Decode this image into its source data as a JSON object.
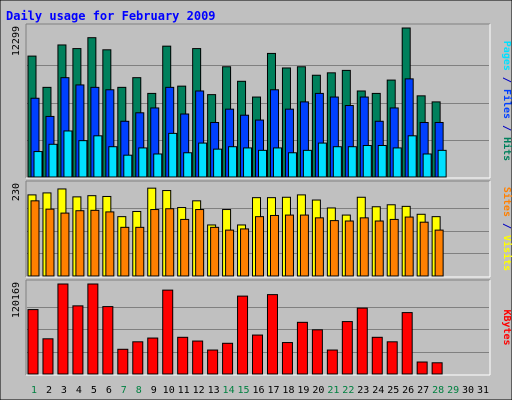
{
  "chart_data": {
    "type": "bar",
    "title": "Daily usage for February 2009",
    "x": [
      "1",
      "2",
      "3",
      "4",
      "5",
      "6",
      "7",
      "8",
      "9",
      "10",
      "11",
      "12",
      "13",
      "14",
      "15",
      "16",
      "17",
      "18",
      "19",
      "20",
      "21",
      "22",
      "23",
      "24",
      "25",
      "26",
      "27",
      "28",
      "29",
      "30",
      "31"
    ],
    "weekend_days": [
      1,
      7,
      8,
      14,
      15,
      21,
      22,
      28,
      29
    ],
    "days_with_data": 28,
    "panels": [
      {
        "name": "pages-files-hits",
        "ymax": 12299,
        "ymax_label": "12299",
        "grid": true,
        "label_parts": [
          {
            "text": "Pages",
            "color": "#00e0ff"
          },
          {
            "text": " / ",
            "color": "#0000c0"
          },
          {
            "text": "Files",
            "color": "#0040ff"
          },
          {
            "text": " / ",
            "color": "#0000c0"
          },
          {
            "text": "Hits",
            "color": "#00805c"
          }
        ],
        "series": [
          {
            "name": "Hits",
            "color": "#00805c",
            "values": [
              9980,
              7400,
              10900,
              10600,
              11500,
              10500,
              7400,
              8200,
              6900,
              10800,
              7500,
              10600,
              6800,
              9100,
              7900,
              6600,
              10200,
              9000,
              9100,
              8400,
              8600,
              8800,
              7100,
              6900,
              8000,
              12299,
              6700,
              6200
            ]
          },
          {
            "name": "Files",
            "color": "#0040ff",
            "values": [
              6500,
              5000,
              8200,
              7600,
              7400,
              7200,
              4600,
              5300,
              5700,
              7400,
              5200,
              7100,
              4500,
              5600,
              5100,
              4700,
              7200,
              5600,
              6200,
              6900,
              6600,
              5900,
              6600,
              4600,
              5700,
              8100,
              4500,
              4500
            ]
          },
          {
            "name": "Pages",
            "color": "#00e0ff",
            "values": [
              2100,
              2700,
              3800,
              3000,
              3400,
              2500,
              1800,
              2400,
              1900,
              3600,
              2000,
              2800,
              2300,
              2500,
              2400,
              2200,
              2400,
              2000,
              2200,
              2800,
              2500,
              2500,
              2600,
              2600,
              2400,
              3400,
              1900,
              2200
            ]
          }
        ]
      },
      {
        "name": "visits-sites",
        "ymax": 230,
        "ymax_label": "230",
        "grid": true,
        "label_parts": [
          {
            "text": "Sites",
            "color": "#ff8000"
          },
          {
            "text": " / ",
            "color": "#0000c0"
          },
          {
            "text": "Visits",
            "color": "#ffff00"
          }
        ],
        "series": [
          {
            "name": "Visits",
            "color": "#ffff00",
            "values": [
              205,
              210,
              220,
              200,
              203,
              201,
              150,
              163,
              222,
              216,
              173,
              190,
              129,
              168,
              129,
              198,
              198,
              199,
              205,
              192,
              172,
              154,
              199,
              175,
              180,
              176,
              156,
              150
            ]
          },
          {
            "name": "Sites",
            "color": "#ff8000",
            "values": [
              190,
              169,
              159,
              165,
              166,
              162,
              123,
              123,
              168,
              170,
              143,
              168,
              123,
              116,
              119,
              150,
              153,
              154,
              154,
              147,
              140,
              139,
              147,
              139,
              143,
              149,
              136,
              116
            ]
          }
        ]
      },
      {
        "name": "kbytes",
        "ymax": 120169,
        "ymax_label": "120169",
        "grid": true,
        "label_parts": [
          {
            "text": "KBytes",
            "color": "#ff0000"
          }
        ],
        "series": [
          {
            "name": "KBytes",
            "color": "#ff0000",
            "values": [
              86000,
              47000,
              120169,
              91000,
              120169,
              90000,
              33000,
              43000,
              48000,
              112000,
              49000,
              44000,
              32000,
              41000,
              104000,
              52000,
              106000,
              42000,
              69000,
              59000,
              32000,
              70000,
              88000,
              49000,
              43000,
              82000,
              16000,
              15000
            ]
          }
        ]
      }
    ]
  }
}
